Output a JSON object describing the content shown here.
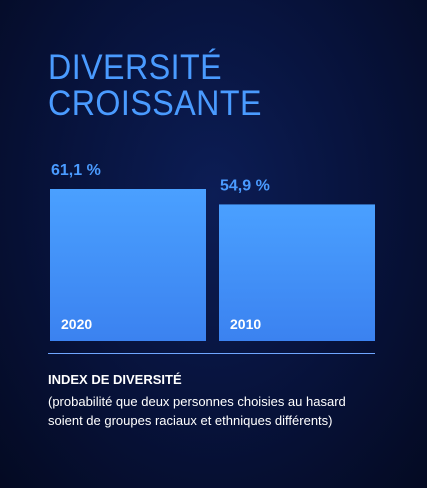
{
  "title": {
    "line1": "DIVERSITÉ",
    "line2": "CROISSANTE"
  },
  "chart_data": {
    "type": "bar",
    "categories": [
      "2020",
      "2010"
    ],
    "values": [
      61.1,
      54.9
    ],
    "value_labels": [
      "61,1 %",
      "54,9 %"
    ],
    "ylim": [
      0,
      100
    ],
    "bar_color": "#4a9bff",
    "grid": false
  },
  "footer": {
    "index_title": "INDEX DE DIVERSITÉ",
    "index_description": "(probabilité que deux personnes choisies au hasard soient de groupes raciaux et ethniques différents)"
  },
  "colors": {
    "accent": "#4a9bff",
    "background": "#07123a",
    "text": "#ffffff"
  }
}
